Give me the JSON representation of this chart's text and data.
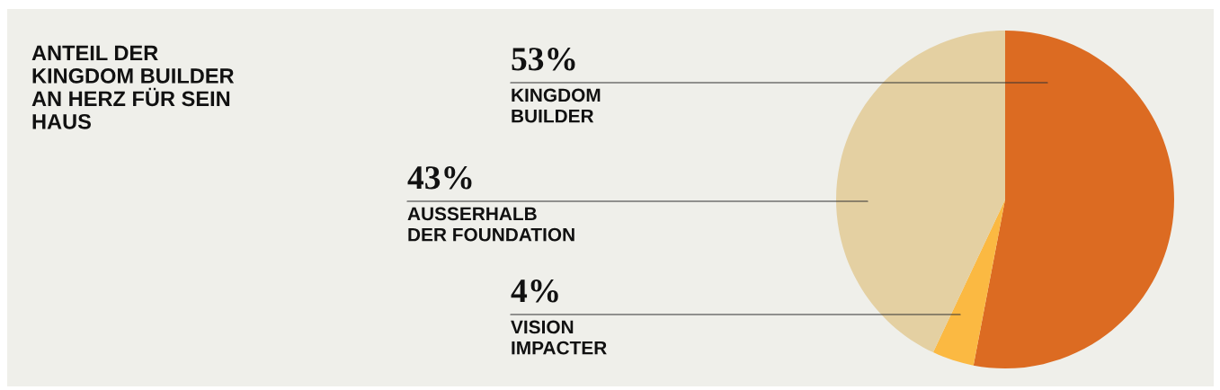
{
  "chart_data": {
    "type": "pie",
    "title": "ANTEIL DER\nKINGDOM BUILDER\nAN HERZ FÜR SEIN\nHAUS",
    "categories": [
      "KINGDOM\nBUILDER",
      "VISION\nIMPACTER",
      "AUSSERHALB\nDER FOUNDATION"
    ],
    "values": [
      53,
      4,
      43
    ],
    "colors": [
      "#dc6b22",
      "#fbb942",
      "#e4d0a2"
    ],
    "value_labels": [
      "53%",
      "4%",
      "43%"
    ]
  }
}
